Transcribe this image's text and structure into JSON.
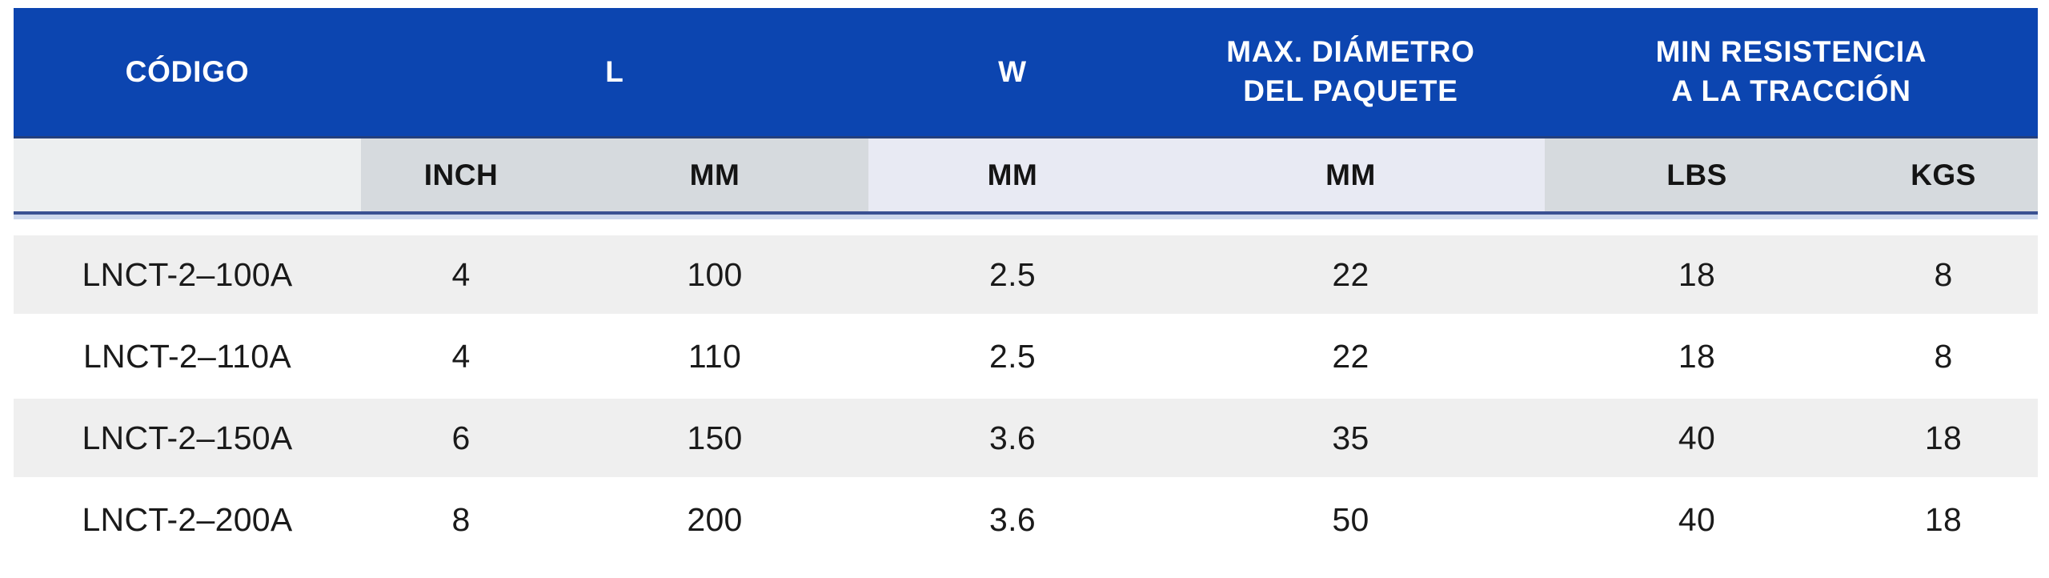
{
  "table": {
    "header": {
      "codigo": "CÓDIGO",
      "l": "L",
      "w": "W",
      "max_diametro_line1": "MAX. DIÁMETRO",
      "max_diametro_line2": "DEL PAQUETE",
      "min_resistencia_line1": "MIN RESISTENCIA",
      "min_resistencia_line2": "A LA TRACCIÓN"
    },
    "units": {
      "inch": "INCH",
      "mm_l": "MM",
      "mm_w": "MM",
      "mm_max": "MM",
      "lbs": "LBS",
      "kgs": "KGS"
    },
    "rows": [
      [
        "LNCT-2–100A",
        "4",
        "100",
        "2.5",
        "22",
        "18",
        "8"
      ],
      [
        "LNCT-2–110A",
        "4",
        "110",
        "2.5",
        "22",
        "18",
        "8"
      ],
      [
        "LNCT-2–150A",
        "6",
        "150",
        "3.6",
        "35",
        "40",
        "18"
      ],
      [
        "LNCT-2–200A",
        "8",
        "200",
        "3.6",
        "50",
        "40",
        "18"
      ]
    ],
    "colors": {
      "header_bg": "#0c45b0",
      "header_text": "#ffffff",
      "header_divider": "#24407e",
      "units_first_bg": "#edeff0",
      "units_dark_bg": "#d6dade",
      "units_light_bg": "#e8eaf3",
      "units_rule_navy": "#3a5192",
      "units_rule_light": "#ccd7ec",
      "row_stripe_bg": "#efefef",
      "body_text": "#1a1a1a"
    }
  }
}
